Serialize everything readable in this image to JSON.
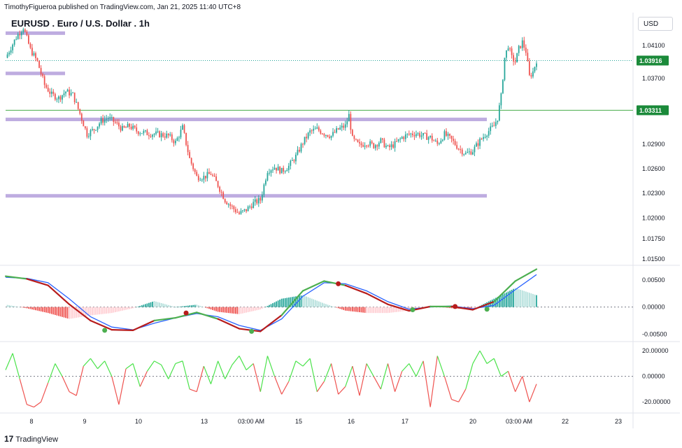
{
  "header": {
    "published": "TimothyFigueroa published on TradingView.com, Jan 21, 2025 11:40 UTC+8",
    "title": "EURUSD . Euro / U.S. Dollar . 1h",
    "currency": "USD",
    "brand": "TradingView",
    "brand_logo": "17"
  },
  "colors": {
    "up": "#26a69a",
    "down": "#ef5350",
    "zone": "#b39ddb",
    "hline": "#4caf50",
    "macd_green": "#4caf50",
    "macd_red": "#b71c1c",
    "signal": "#2962ff",
    "osc_green": "#4be34b",
    "osc_red": "#ef5350",
    "price_tag": "#1b8a3a"
  },
  "chart_data": [
    {
      "type": "candlestick",
      "title": "EURUSD . Euro / U.S. Dollar . 1h",
      "x_ticks": [
        "8",
        "9",
        "10",
        "13",
        "03:00 AM",
        "15",
        "16",
        "17",
        "20",
        "03:00 AM",
        "22",
        "23"
      ],
      "y_ticks": [
        "1.04100",
        "1.03700",
        "1.02900",
        "1.02600",
        "1.02300",
        "1.02000",
        "1.01750",
        "1.01500"
      ],
      "ylim": [
        1.0145,
        1.045
      ],
      "last_price": {
        "value": 1.03916,
        "label": "1.03916"
      },
      "horizontal_line": {
        "value": 1.03311,
        "label": "1.03311"
      },
      "zones": [
        {
          "value": 1.0425,
          "x_from": "start",
          "x_to": "8"
        },
        {
          "value": 1.0376,
          "x_from": "start",
          "x_to": "8"
        },
        {
          "value": 1.032,
          "x_from": "start",
          "x_to": "20"
        },
        {
          "value": 1.0227,
          "x_from": "start",
          "x_to": "20"
        }
      ],
      "path": [
        [
          0,
          1.0395
        ],
        [
          6,
          1.042
        ],
        [
          10,
          1.0432
        ],
        [
          14,
          1.0405
        ],
        [
          18,
          1.039
        ],
        [
          22,
          1.0362
        ],
        [
          26,
          1.035
        ],
        [
          30,
          1.0346
        ],
        [
          34,
          1.0354
        ],
        [
          38,
          1.035
        ],
        [
          42,
          1.0327
        ],
        [
          46,
          1.0302
        ],
        [
          50,
          1.0308
        ],
        [
          54,
          1.0318
        ],
        [
          58,
          1.0322
        ],
        [
          62,
          1.0316
        ],
        [
          66,
          1.0308
        ],
        [
          70,
          1.0312
        ],
        [
          74,
          1.0306
        ],
        [
          80,
          1.0303
        ],
        [
          86,
          1.0302
        ],
        [
          92,
          1.03
        ],
        [
          96,
          1.0292
        ],
        [
          100,
          1.031
        ],
        [
          104,
          1.0272
        ],
        [
          108,
          1.025
        ],
        [
          112,
          1.025
        ],
        [
          116,
          1.0254
        ],
        [
          120,
          1.024
        ],
        [
          124,
          1.0222
        ],
        [
          128,
          1.0213
        ],
        [
          132,
          1.0205
        ],
        [
          136,
          1.021
        ],
        [
          140,
          1.0218
        ],
        [
          144,
          1.0222
        ],
        [
          148,
          1.0258
        ],
        [
          152,
          1.0262
        ],
        [
          156,
          1.0257
        ],
        [
          160,
          1.0263
        ],
        [
          164,
          1.0275
        ],
        [
          168,
          1.0292
        ],
        [
          172,
          1.0305
        ],
        [
          176,
          1.0308
        ],
        [
          180,
          1.0303
        ],
        [
          184,
          1.03
        ],
        [
          188,
          1.0308
        ],
        [
          192,
          1.0312
        ],
        [
          194,
          1.0325
        ],
        [
          196,
          1.0296
        ],
        [
          200,
          1.0288
        ],
        [
          204,
          1.0292
        ],
        [
          208,
          1.0288
        ],
        [
          212,
          1.0294
        ],
        [
          216,
          1.0285
        ],
        [
          220,
          1.029
        ],
        [
          224,
          1.0298
        ],
        [
          228,
          1.0302
        ],
        [
          232,
          1.0303
        ],
        [
          236,
          1.03
        ],
        [
          240,
          1.0298
        ],
        [
          244,
          1.029
        ],
        [
          248,
          1.0302
        ],
        [
          252,
          1.0295
        ],
        [
          256,
          1.0285
        ],
        [
          260,
          1.0278
        ],
        [
          264,
          1.0282
        ],
        [
          268,
          1.0294
        ],
        [
          272,
          1.0304
        ],
        [
          276,
          1.0312
        ],
        [
          278,
          1.0322
        ],
        [
          280,
          1.0348
        ],
        [
          282,
          1.0395
        ],
        [
          284,
          1.041
        ],
        [
          286,
          1.0395
        ],
        [
          288,
          1.039
        ],
        [
          290,
          1.0406
        ],
        [
          292,
          1.0414
        ],
        [
          294,
          1.0403
        ],
        [
          296,
          1.0372
        ],
        [
          298,
          1.0378
        ],
        [
          300,
          1.0392
        ]
      ]
    },
    {
      "type": "line",
      "title": "MACD",
      "y_ticks": [
        "0.00500",
        "0.00000",
        "-0.00500"
      ],
      "ylim": [
        -0.006,
        0.0072
      ],
      "series": [
        {
          "name": "MACD",
          "points": [
            [
              0,
              0.0057
            ],
            [
              12,
              0.0052
            ],
            [
              24,
              0.004
            ],
            [
              36,
              0.0005
            ],
            [
              48,
              -0.0025
            ],
            [
              60,
              -0.0042
            ],
            [
              72,
              -0.0043
            ],
            [
              84,
              -0.0025
            ],
            [
              96,
              -0.002
            ],
            [
              108,
              -0.001
            ],
            [
              120,
              -0.0022
            ],
            [
              132,
              -0.004
            ],
            [
              144,
              -0.0045
            ],
            [
              156,
              -0.0015
            ],
            [
              168,
              0.003
            ],
            [
              180,
              0.0048
            ],
            [
              192,
              0.004
            ],
            [
              204,
              0.0025
            ],
            [
              216,
              0.0005
            ],
            [
              228,
              -0.0007
            ],
            [
              240,
              0.0001
            ],
            [
              252,
              0.0001
            ],
            [
              264,
              -0.0005
            ],
            [
              276,
              0.001
            ],
            [
              288,
              0.0048
            ],
            [
              300,
              0.007
            ]
          ]
        },
        {
          "name": "Signal",
          "points": [
            [
              0,
              0.0055
            ],
            [
              12,
              0.0053
            ],
            [
              24,
              0.0045
            ],
            [
              36,
              0.0015
            ],
            [
              48,
              -0.0018
            ],
            [
              60,
              -0.0037
            ],
            [
              72,
              -0.0042
            ],
            [
              84,
              -0.003
            ],
            [
              96,
              -0.002
            ],
            [
              108,
              -0.0012
            ],
            [
              120,
              -0.0018
            ],
            [
              132,
              -0.0034
            ],
            [
              144,
              -0.0043
            ],
            [
              156,
              -0.0022
            ],
            [
              168,
              0.002
            ],
            [
              180,
              0.0045
            ],
            [
              192,
              0.0043
            ],
            [
              204,
              0.003
            ],
            [
              216,
              0.001
            ],
            [
              228,
              -0.0004
            ],
            [
              240,
              0.0
            ],
            [
              252,
              0.0002
            ],
            [
              264,
              -0.0003
            ],
            [
              276,
              0.0003
            ],
            [
              288,
              0.0032
            ],
            [
              300,
              0.006
            ]
          ]
        }
      ],
      "cross_markers": [
        {
          "x": 56,
          "value": -0.0043,
          "direction": "up"
        },
        {
          "x": 102,
          "value": -0.0011,
          "direction": "down"
        },
        {
          "x": 139,
          "value": -0.0045,
          "direction": "up"
        },
        {
          "x": 188,
          "value": 0.0043,
          "direction": "down"
        },
        {
          "x": 230,
          "value": -0.0005,
          "direction": "up"
        },
        {
          "x": 254,
          "value": 0.0001,
          "direction": "down"
        },
        {
          "x": 272,
          "value": -0.0004,
          "direction": "up"
        }
      ]
    },
    {
      "type": "line",
      "title": "Oscillator",
      "y_ticks": [
        "20.00000",
        "0.00000",
        "-20.00000"
      ],
      "ylim": [
        -27,
        25
      ],
      "series": [
        {
          "name": "Oscillator",
          "points": [
            [
              0,
              5
            ],
            [
              4,
              18
            ],
            [
              8,
              -2
            ],
            [
              12,
              -22
            ],
            [
              16,
              -24
            ],
            [
              20,
              -20
            ],
            [
              24,
              -5
            ],
            [
              28,
              10
            ],
            [
              32,
              0
            ],
            [
              36,
              -12
            ],
            [
              40,
              -15
            ],
            [
              44,
              8
            ],
            [
              48,
              14
            ],
            [
              52,
              6
            ],
            [
              56,
              12
            ],
            [
              60,
              0
            ],
            [
              64,
              -22
            ],
            [
              68,
              6
            ],
            [
              72,
              10
            ],
            [
              76,
              -8
            ],
            [
              80,
              4
            ],
            [
              84,
              12
            ],
            [
              88,
              9
            ],
            [
              92,
              -2
            ],
            [
              96,
              10
            ],
            [
              100,
              12
            ],
            [
              104,
              -10
            ],
            [
              108,
              -12
            ],
            [
              112,
              8
            ],
            [
              116,
              -6
            ],
            [
              120,
              12
            ],
            [
              124,
              -2
            ],
            [
              128,
              9
            ],
            [
              132,
              16
            ],
            [
              136,
              5
            ],
            [
              140,
              10
            ],
            [
              144,
              -12
            ],
            [
              148,
              16
            ],
            [
              152,
              0
            ],
            [
              156,
              -14
            ],
            [
              160,
              -4
            ],
            [
              164,
              12
            ],
            [
              168,
              8
            ],
            [
              172,
              14
            ],
            [
              176,
              -12
            ],
            [
              180,
              -4
            ],
            [
              184,
              10
            ],
            [
              188,
              -14
            ],
            [
              192,
              -8
            ],
            [
              196,
              8
            ],
            [
              200,
              -15
            ],
            [
              204,
              10
            ],
            [
              208,
              0
            ],
            [
              212,
              -10
            ],
            [
              216,
              10
            ],
            [
              220,
              -12
            ],
            [
              224,
              4
            ],
            [
              228,
              10
            ],
            [
              232,
              0
            ],
            [
              236,
              12
            ],
            [
              240,
              -24
            ],
            [
              244,
              16
            ],
            [
              248,
              0
            ],
            [
              252,
              -18
            ],
            [
              256,
              -20
            ],
            [
              260,
              -10
            ],
            [
              264,
              10
            ],
            [
              268,
              20
            ],
            [
              272,
              10
            ],
            [
              276,
              14
            ],
            [
              280,
              0
            ],
            [
              284,
              4
            ],
            [
              288,
              -12
            ],
            [
              292,
              0
            ],
            [
              296,
              -20
            ],
            [
              300,
              -6
            ]
          ]
        }
      ]
    }
  ]
}
